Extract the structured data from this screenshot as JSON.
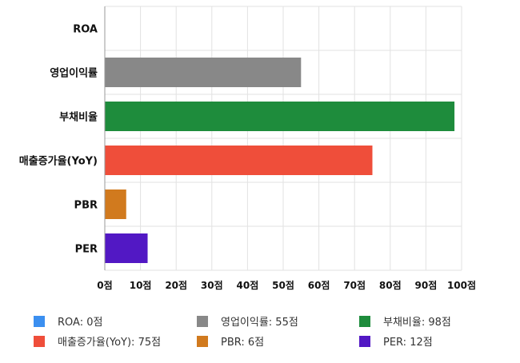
{
  "chart_data": {
    "type": "bar",
    "orientation": "horizontal",
    "title": "",
    "xlabel": "",
    "ylabel": "",
    "xlim": [
      0,
      100
    ],
    "grid": true,
    "legend_position": "bottom",
    "categories": [
      "ROA",
      "영업이익률",
      "부채비율",
      "매출증가율(YoY)",
      "PBR",
      "PER"
    ],
    "values": [
      0,
      55,
      98,
      75,
      6,
      12
    ],
    "colors": [
      "#3b8ff0",
      "#888888",
      "#1e8c3c",
      "#ef4e3a",
      "#d17a1e",
      "#5218c4"
    ],
    "tick_values": [
      0,
      10,
      20,
      30,
      40,
      50,
      60,
      70,
      80,
      90,
      100
    ],
    "tick_labels": [
      "0점",
      "10점",
      "20점",
      "30점",
      "40점",
      "50점",
      "60점",
      "70점",
      "80점",
      "90점",
      "100점"
    ],
    "legend": [
      {
        "label": "ROA: 0점",
        "color": "#3b8ff0"
      },
      {
        "label": "영업이익률: 55점",
        "color": "#888888"
      },
      {
        "label": "부채비율: 98점",
        "color": "#1e8c3c"
      },
      {
        "label": "매출증가율(YoY): 75점",
        "color": "#ef4e3a"
      },
      {
        "label": "PBR: 6점",
        "color": "#d17a1e"
      },
      {
        "label": "PER: 12점",
        "color": "#5218c4"
      }
    ]
  }
}
